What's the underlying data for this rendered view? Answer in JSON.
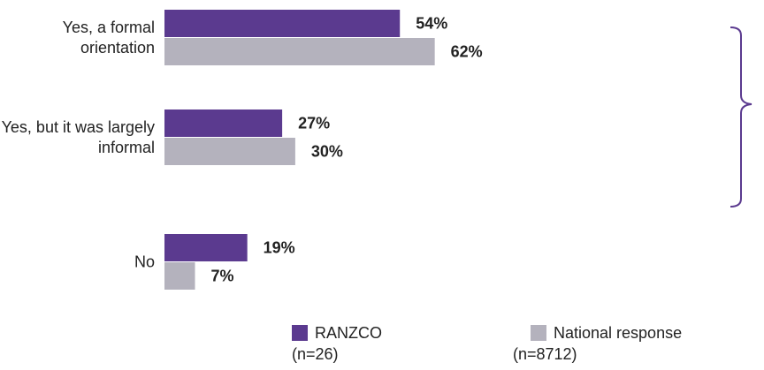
{
  "chart_data": {
    "type": "bar",
    "orientation": "horizontal",
    "categories": [
      "Yes, a formal orientation",
      "Yes, but it was largely informal",
      "No"
    ],
    "series": [
      {
        "name": "RANZCO",
        "sample": "(n=26)",
        "color": "#5b3a8f",
        "values": [
          54,
          27,
          19
        ],
        "value_labels": [
          "54%",
          "27%",
          "19%"
        ]
      },
      {
        "name": "National response",
        "sample": "(n=8712)",
        "color": "#b4b2bd",
        "values": [
          62,
          30,
          7
        ],
        "value_labels": [
          "62%",
          "30%",
          "7%"
        ]
      }
    ],
    "xlim": [
      0,
      100
    ],
    "legend": "bottom"
  }
}
